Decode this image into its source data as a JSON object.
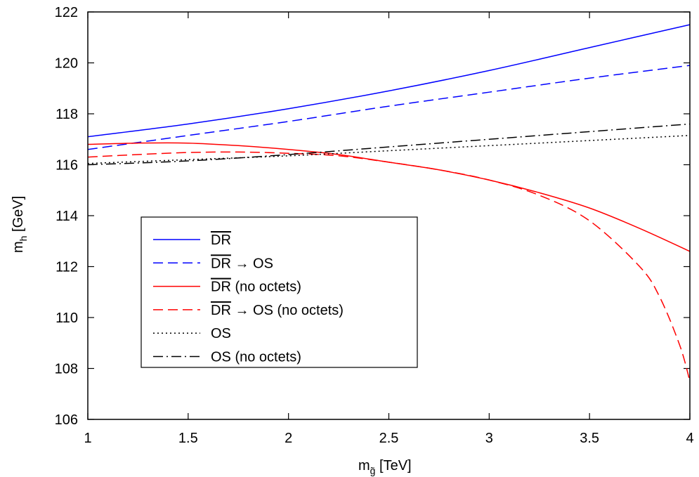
{
  "chart_data": {
    "type": "line",
    "xlabel": "m",
    "xlabel_sub": "g̃",
    "xlabel_unit": " [TeV]",
    "ylabel": "m",
    "ylabel_sub": "h",
    "ylabel_unit": " [GeV]",
    "xlim": [
      1,
      4
    ],
    "ylim": [
      106,
      122
    ],
    "xticks": [
      "1",
      "1.5",
      "2",
      "2.5",
      "3",
      "3.5",
      "4"
    ],
    "yticks": [
      "106",
      "108",
      "110",
      "112",
      "114",
      "116",
      "118",
      "120",
      "122"
    ],
    "grid": false,
    "legend_position": "lower-left",
    "series": [
      {
        "name_parts": [
          "DR",
          "",
          ""
        ],
        "color": "#0000ff",
        "dash": "solid",
        "x": [
          1,
          1.5,
          2,
          2.5,
          3,
          3.5,
          4
        ],
        "y": [
          117.1,
          117.6,
          118.2,
          118.9,
          119.7,
          120.6,
          121.5
        ]
      },
      {
        "name_parts": [
          "DR",
          "→",
          " OS"
        ],
        "color": "#0000ff",
        "dash": "dashed",
        "x": [
          1,
          1.5,
          2,
          2.5,
          3,
          3.5,
          4
        ],
        "y": [
          116.6,
          117.15,
          117.7,
          118.3,
          118.85,
          119.4,
          119.9
        ]
      },
      {
        "name_parts": [
          "DR",
          "",
          " (no octets)"
        ],
        "color": "#ff0000",
        "dash": "solid",
        "x": [
          1,
          1.25,
          1.5,
          1.75,
          2,
          2.25,
          2.5,
          2.75,
          3,
          3.25,
          3.5,
          3.75,
          4
        ],
        "y": [
          116.8,
          116.85,
          116.85,
          116.75,
          116.6,
          116.4,
          116.1,
          115.8,
          115.4,
          114.9,
          114.3,
          113.5,
          112.6
        ]
      },
      {
        "name_parts": [
          "DR",
          "→",
          " OS (no octets)"
        ],
        "color": "#ff0000",
        "dash": "dashed",
        "x": [
          1,
          1.25,
          1.5,
          1.75,
          2,
          2.25,
          2.5,
          2.75,
          3,
          3.25,
          3.5,
          3.75,
          3.85,
          3.95,
          4
        ],
        "y": [
          116.3,
          116.4,
          116.48,
          116.5,
          116.45,
          116.35,
          116.1,
          115.8,
          115.4,
          114.8,
          113.8,
          112.0,
          110.8,
          108.9,
          107.5
        ]
      },
      {
        "name_parts": [
          "",
          "",
          "OS"
        ],
        "color": "#000000",
        "dash": "dotted",
        "x": [
          1,
          1.5,
          2,
          2.5,
          3,
          3.5,
          4
        ],
        "y": [
          116.05,
          116.2,
          116.35,
          116.55,
          116.75,
          116.95,
          117.15
        ]
      },
      {
        "name_parts": [
          "",
          "",
          "OS (no octets)"
        ],
        "color": "#000000",
        "dash": "dashdot",
        "x": [
          1,
          1.5,
          2,
          2.5,
          3,
          3.5,
          4
        ],
        "y": [
          116.0,
          116.15,
          116.4,
          116.7,
          117.0,
          117.3,
          117.6
        ]
      }
    ]
  }
}
